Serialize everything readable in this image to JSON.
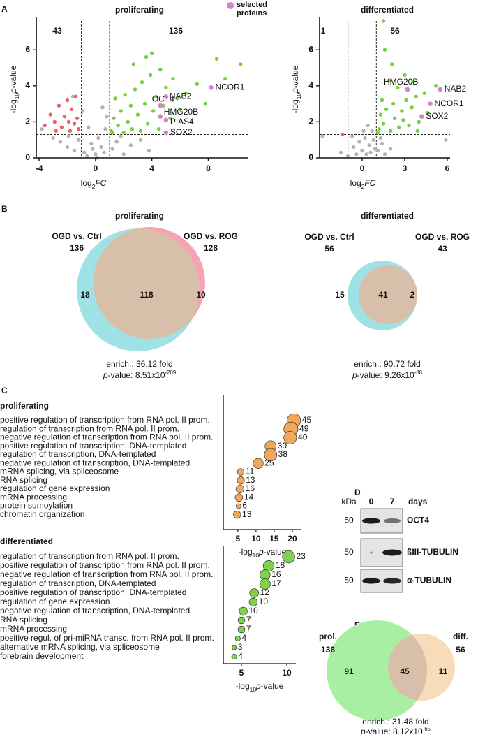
{
  "panels": [
    "A",
    "B",
    "C",
    "D",
    "E"
  ],
  "chart_data": [
    {
      "type": "volcano",
      "title": "proliferating",
      "xlabel": {
        "prefix": "log",
        "sub": "2",
        "italic": "FC"
      },
      "ylabel": {
        "prefix": "-log",
        "sub": "10",
        "italic": "p",
        "suffix": "-value"
      },
      "xlim": [
        -4.2,
        10.8
      ],
      "ylim": [
        0,
        7.6
      ],
      "xticks": [
        -4,
        0,
        4,
        8
      ],
      "yticks": [
        0,
        2,
        4,
        6
      ],
      "thresholds": {
        "x": [
          -1,
          1
        ],
        "y": 1.3
      },
      "annotations": [
        {
          "value": 43,
          "color": "#e8636b"
        },
        {
          "value": 136,
          "color": "#72d23c"
        }
      ],
      "series": [
        {
          "color": "#b4b4b4",
          "x": [
            -3.8,
            -3,
            -2.5,
            -2,
            -1.5,
            -1.2,
            -0.8,
            -0.5,
            -0.3,
            0,
            0.2,
            0.4,
            0.6,
            0.8,
            -0.9,
            0.5,
            1.2,
            1.5,
            2,
            2.5,
            3.2,
            -1.6,
            0.7,
            -0.2,
            1.8,
            -1.9,
            3.8,
            0.1,
            -0.6
          ],
          "values": [
            1.6,
            1.1,
            0.9,
            0.6,
            0.4,
            1.0,
            0.3,
            1.7,
            0.8,
            0.2,
            1.1,
            0.6,
            0.3,
            2.3,
            2.6,
            2.8,
            0.5,
            0.9,
            0.2,
            0.7,
            1.0,
            3.4,
            1.6,
            0.5,
            1.2,
            1.2,
            0.4,
            0.0,
            0.1
          ]
        },
        {
          "color": "#e8636b",
          "x": [
            -3.6,
            -3.2,
            -2.9,
            -2.6,
            -2.4,
            -2.2,
            -2.0,
            -1.8,
            -1.7,
            -1.5,
            -1.4,
            -1.3,
            -2.8,
            -1.9,
            -1.2
          ],
          "values": [
            1.8,
            2.4,
            2.0,
            2.9,
            1.7,
            2.3,
            3.2,
            1.5,
            2.7,
            1.9,
            3.4,
            2.2,
            1.5,
            2.0,
            1.6
          ]
        },
        {
          "color": "#72d23c",
          "x": [
            1.1,
            1.3,
            1.4,
            1.6,
            1.8,
            2.0,
            2.1,
            2.3,
            2.5,
            2.6,
            2.8,
            3.0,
            3.2,
            3.3,
            3.5,
            3.7,
            3.9,
            4.1,
            4.3,
            4.5,
            4.6,
            4.8,
            5.0,
            5.3,
            5.5,
            5.8,
            6.0,
            6.4,
            6.8,
            7.2,
            7.8,
            8.6,
            9.2,
            10.3,
            1.2,
            2.7,
            4.0,
            3.6
          ],
          "values": [
            1.5,
            2.2,
            3.3,
            1.8,
            2.6,
            1.4,
            3.5,
            2.0,
            2.9,
            1.6,
            3.8,
            2.4,
            1.5,
            4.2,
            3.0,
            1.9,
            4.6,
            2.6,
            3.4,
            1.6,
            4.9,
            2.9,
            3.9,
            2.2,
            4.4,
            3.3,
            2.7,
            3.6,
            2.0,
            4.1,
            3.0,
            5.5,
            4.4,
            5.2,
            1.4,
            5.2,
            5.8,
            5.6
          ]
        },
        {
          "name": "selected proteins",
          "color": "#d77fd0",
          "x": [
            8.2,
            5.0,
            4.6,
            4.6,
            5.0,
            5.0
          ],
          "values": [
            3.9,
            3.4,
            2.9,
            2.3,
            2.1,
            1.4
          ],
          "labels": [
            "NCOR1",
            "NAB2",
            "OCT4",
            "HMG20B",
            "PIAS4",
            "SOX2"
          ]
        }
      ]
    },
    {
      "type": "volcano",
      "title": "differentiated",
      "xlabel": {
        "prefix": "log",
        "sub": "2",
        "italic": "FC"
      },
      "ylabel": {
        "prefix": "-log",
        "sub": "10",
        "italic": "p",
        "suffix": "-value"
      },
      "xlim": [
        -3,
        6.2
      ],
      "ylim": [
        0,
        7.6
      ],
      "xticks": [
        0,
        3,
        6
      ],
      "yticks": [
        0,
        2,
        4,
        6
      ],
      "thresholds": {
        "x": [
          -1,
          1
        ],
        "y": 1.3
      },
      "annotations": [
        {
          "value": 1,
          "color": "#e8636b"
        },
        {
          "value": 56,
          "color": "#72d23c"
        }
      ],
      "series": [
        {
          "color": "#b4b4b4",
          "x": [
            -2.8,
            -1.5,
            -1,
            -0.6,
            -0.4,
            -0.2,
            0,
            0.2,
            0.3,
            0.5,
            0.6,
            0.8,
            0.9,
            0.1,
            1.1,
            1.4,
            1.6,
            2.0,
            -0.7,
            0.4,
            0.7,
            5.9,
            1.3
          ],
          "values": [
            1.2,
            0.3,
            0.1,
            0.6,
            0.2,
            0.9,
            0.4,
            1.1,
            0.2,
            0.7,
            0.3,
            1.0,
            0.5,
            1.5,
            0.4,
            0.8,
            0.2,
            0.5,
            1.2,
            1.8,
            1.5,
            1.0,
            1.1
          ]
        },
        {
          "color": "#e8636b",
          "x": [
            -1.4
          ],
          "values": [
            1.3
          ]
        },
        {
          "color": "#72d23c",
          "x": [
            1.2,
            1.3,
            1.4,
            1.5,
            1.7,
            1.9,
            2.0,
            2.2,
            2.3,
            2.5,
            2.6,
            2.8,
            3.0,
            3.1,
            3.3,
            3.5,
            3.6,
            3.8,
            4.0,
            4.4,
            4.6,
            5.2,
            1.6,
            1.5,
            2.1,
            1.1,
            2.9,
            3.9
          ],
          "values": [
            1.6,
            2.4,
            3.2,
            1.9,
            2.7,
            4.3,
            1.5,
            3.0,
            2.2,
            3.9,
            1.7,
            2.6,
            4.6,
            3.2,
            1.8,
            2.8,
            4.2,
            3.4,
            2.0,
            3.6,
            2.5,
            4.0,
            6.0,
            7.6,
            5.2,
            1.4,
            2.1,
            1.5
          ]
        },
        {
          "color": "#d77fd0",
          "x": [
            3.2,
            5.5,
            4.8,
            4.2
          ],
          "values": [
            3.8,
            3.8,
            3.0,
            2.3
          ],
          "labels": [
            "HMG20B",
            "NAB2",
            "NCOR1",
            "SOX2"
          ]
        }
      ]
    },
    {
      "type": "venn",
      "title": "proliferating",
      "sets": [
        {
          "name": "OGD vs. Ctrl",
          "size": 136,
          "color": "#9fe2e6",
          "label_color": "#7ccfd5"
        },
        {
          "name": "OGD vs. ROG",
          "size": 128,
          "color": "#f4a5b4",
          "label_color": "#e68b9e"
        }
      ],
      "regions": [
        18,
        118,
        10
      ],
      "overlap_color": "#d8bfa9",
      "enrichment": "enrich.: 36.12 fold",
      "pvalue": {
        "italic": "p",
        "text": "-value: 8.51x10",
        "exponent": "-209"
      }
    },
    {
      "type": "venn",
      "title": "differentiated",
      "sets": [
        {
          "name": "OGD vs. Ctrl",
          "size": 56,
          "color": "#9fe2e6",
          "label_color": "#7ccfd5"
        },
        {
          "name": "OGD vs. ROG",
          "size": 43,
          "color": "#f4a5b4",
          "label_color": "#e68b9e"
        }
      ],
      "regions": [
        15,
        41,
        2
      ],
      "overlap_color": "#d8bfa9",
      "enrichment": "enrich.: 90.72 fold",
      "pvalue": {
        "italic": "p",
        "text": "-value: 9.26x10",
        "exponent": "-88"
      }
    },
    {
      "type": "bubble",
      "title": "proliferating",
      "categories": [
        "positive regulation of transcription from RNA pol. II prom.",
        "regulation of transcription from RNA pol. II prom.",
        "negative regulation of transcription from RNA pol. II prom.",
        "positive regulation of transcription, DNA-templated",
        "regulation of transcription, DNA-templated",
        "negative regulation of transcription, DNA-templated",
        "mRNA splicing, via spliceosome",
        "RNA splicing",
        "regulation of gene expression",
        "mRNA processing",
        "protein sumoylation",
        "chromatin organization"
      ],
      "values": [
        20.4,
        19.6,
        19.4,
        14,
        14,
        10.6,
        5.8,
        5.8,
        5.6,
        5.3,
        5.2,
        4.8
      ],
      "sizes": [
        45,
        49,
        40,
        30,
        38,
        25,
        11,
        13,
        16,
        14,
        6,
        13
      ],
      "color": "#f2a75a",
      "xlim": [
        1,
        22.5
      ],
      "xticks": [
        5,
        10,
        15,
        20
      ],
      "xlabel": {
        "prefix": "-log",
        "sub": "10",
        "italic": "p",
        "suffix": "-value"
      }
    },
    {
      "type": "bubble",
      "title": "differentiated",
      "categories": [
        "regulation of transcription from RNA pol. II prom.",
        "positive regulation of transcription from RNA pol. II prom.",
        "negative regulation of transcription from RNA pol. II prom.",
        "regulation of transcription, DNA-templated",
        "positive regulation of transcription, DNA-templated",
        "regulation of gene expression",
        "negative regulation of transcription, DNA-templated",
        "RNA splicing",
        "mRNA processing",
        "positive regul. of pri-miRNA transc. from RNA pol. II prom.",
        "alternative mRNA splicing, via spliceosome",
        "forebrain development"
      ],
      "values": [
        10.2,
        8.0,
        7.6,
        7.6,
        6.4,
        6.3,
        5.2,
        5.0,
        5.0,
        4.6,
        4.2,
        4.2
      ],
      "sizes": [
        23,
        18,
        16,
        17,
        12,
        10,
        10,
        7,
        7,
        4,
        3,
        4
      ],
      "color": "#7fd24b",
      "xlim": [
        3,
        11
      ],
      "xticks": [
        5,
        10
      ],
      "xlabel": {
        "prefix": "-log",
        "sub": "10",
        "italic": "p",
        "suffix": "-value"
      }
    },
    {
      "type": "venn",
      "sets": [
        {
          "name": "prol.",
          "size": 136,
          "color": "#a9efa3",
          "label_color": "#8ed78b"
        },
        {
          "name": "diff.",
          "size": 56,
          "color": "#f6dcb9",
          "label_color": "#efc99a"
        }
      ],
      "regions": [
        91,
        45,
        11
      ],
      "overlap_color": "#d8bfa9",
      "enrichment": "enrich.: 31.48 fold",
      "pvalue": {
        "italic": "p",
        "text": "-value: 8.12x10",
        "exponent": "-65"
      }
    }
  ],
  "blot": {
    "unit": "kDa",
    "lanes": [
      0,
      7
    ],
    "lanes_label": "days",
    "rows": [
      {
        "marker": 50,
        "label": "OCT4"
      },
      {
        "marker": 50,
        "label": "ßIII-TUBULIN"
      },
      {
        "marker": 50,
        "label": "α-TUBULIN"
      }
    ]
  }
}
